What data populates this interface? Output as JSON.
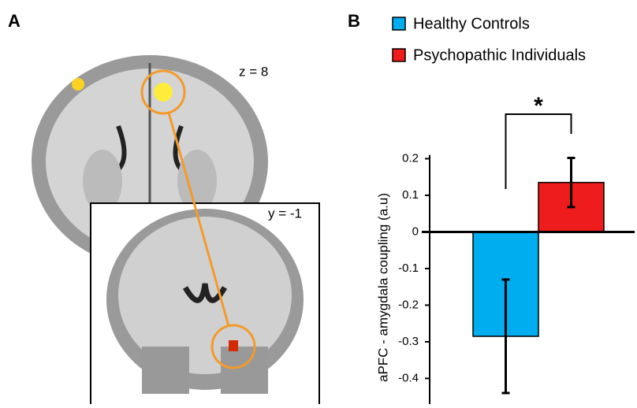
{
  "panel_a": {
    "label": "A",
    "axial_label": "z = 8",
    "coronal_label": "y = -1"
  },
  "chart_data": {
    "type": "bar",
    "panel_label": "B",
    "y_label": "aPFC - amygdala coupling (a.u)",
    "categories": [
      null
    ],
    "series": [
      {
        "name": "Healthy Controls",
        "color": "#00aeef",
        "values": [
          -0.285
        ],
        "errors": [
          0.155
        ]
      },
      {
        "name": "Psychopathic Individuals",
        "color": "#ee1c1c",
        "values": [
          0.135
        ],
        "errors": [
          0.067
        ]
      }
    ],
    "ylim": [
      -0.47,
      0.21
    ],
    "yticks": [
      0.2,
      0.1,
      0,
      -0.1,
      -0.2,
      -0.3,
      -0.4
    ],
    "significance": "*"
  }
}
